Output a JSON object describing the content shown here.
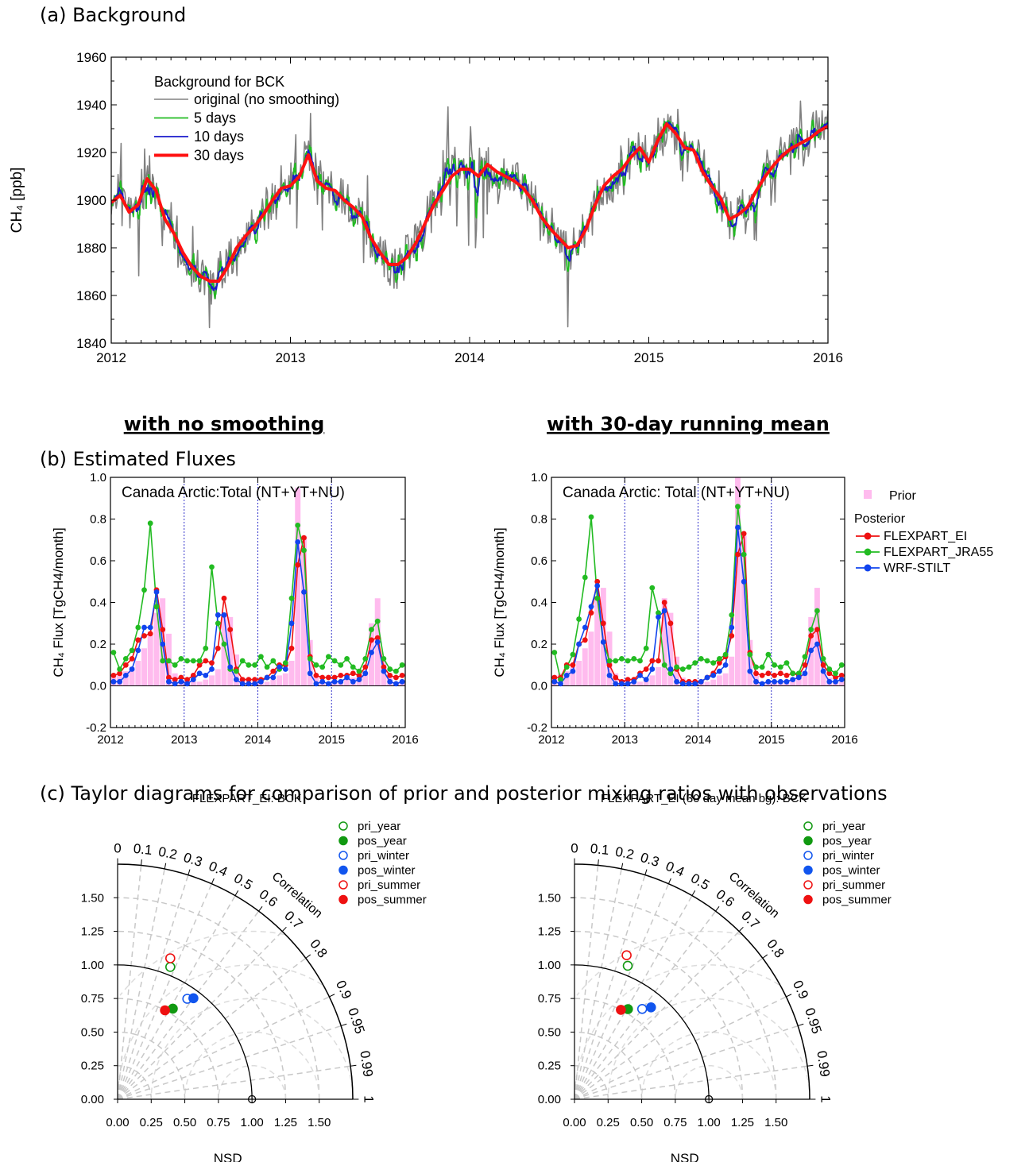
{
  "section_a": {
    "label": "(a) Background"
  },
  "section_b": {
    "label": "(b) Estimated Fluxes",
    "left_heading": "with no smoothing",
    "right_heading": "with 30-day running mean"
  },
  "section_c": {
    "label": "(c) Taylor diagrams for comparison of prior and posterior mixing ratios with observations"
  },
  "chart_data": [
    {
      "id": "background",
      "type": "line",
      "ylabel": "CH₄ [ppb]",
      "xlim": [
        2012,
        2016
      ],
      "ylim": [
        1840,
        1960
      ],
      "x_ticks": [
        "2012",
        "2013",
        "2014",
        "2015",
        "2016"
      ],
      "y_ticks": [
        1840,
        1860,
        1880,
        1900,
        1920,
        1940,
        1960
      ],
      "legend_title": "Background for BCK",
      "legend_position": "top-left",
      "colors": {
        "original": "#808080",
        "d5": "#22bb22",
        "d10": "#1a1acc",
        "d30": "#ff1111"
      },
      "series": [
        {
          "name": "original (no smoothing)",
          "key": "original"
        },
        {
          "name": "5 days",
          "key": "d5"
        },
        {
          "name": "10 days",
          "key": "d10"
        },
        {
          "name": "30 days",
          "key": "d30",
          "x": [
            2012.0,
            2012.05,
            2012.1,
            2012.15,
            2012.2,
            2012.25,
            2012.3,
            2012.35,
            2012.4,
            2012.45,
            2012.5,
            2012.55,
            2012.6,
            2012.65,
            2012.7,
            2012.75,
            2012.8,
            2012.85,
            2012.9,
            2012.95,
            2013.0,
            2013.05,
            2013.1,
            2013.15,
            2013.2,
            2013.25,
            2013.3,
            2013.35,
            2013.4,
            2013.45,
            2013.5,
            2013.55,
            2013.6,
            2013.65,
            2013.7,
            2013.75,
            2013.8,
            2013.85,
            2013.9,
            2013.95,
            2014.0,
            2014.05,
            2014.1,
            2014.15,
            2014.2,
            2014.25,
            2014.3,
            2014.35,
            2014.4,
            2014.45,
            2014.5,
            2014.55,
            2014.6,
            2014.65,
            2014.7,
            2014.75,
            2014.8,
            2014.85,
            2014.9,
            2014.95,
            2015.0,
            2015.05,
            2015.1,
            2015.15,
            2015.2,
            2015.25,
            2015.3,
            2015.35,
            2015.4,
            2015.45,
            2015.5,
            2015.55,
            2015.6,
            2015.65,
            2015.7,
            2015.75,
            2015.8,
            2015.85,
            2015.9,
            2015.95,
            2016.0
          ],
          "y": [
            1899,
            1902,
            1895,
            1898,
            1909,
            1904,
            1892,
            1886,
            1878,
            1872,
            1868,
            1866,
            1866,
            1872,
            1880,
            1885,
            1889,
            1894,
            1900,
            1905,
            1906,
            1910,
            1919,
            1908,
            1905,
            1904,
            1900,
            1897,
            1893,
            1884,
            1878,
            1873,
            1873,
            1876,
            1882,
            1890,
            1898,
            1904,
            1910,
            1913,
            1913,
            1910,
            1915,
            1912,
            1910,
            1908,
            1905,
            1900,
            1893,
            1888,
            1884,
            1880,
            1881,
            1888,
            1898,
            1906,
            1910,
            1913,
            1918,
            1922,
            1916,
            1925,
            1932,
            1928,
            1922,
            1921,
            1912,
            1906,
            1901,
            1892,
            1894,
            1897,
            1904,
            1910,
            1915,
            1919,
            1922,
            1924,
            1926,
            1929,
            1931
          ]
        }
      ]
    },
    {
      "id": "flux_no_smoothing",
      "type": "line",
      "panel": "left",
      "annotation": "Canada Arctic:Total  (NT+YT+NU)",
      "ylabel": "CH₄ Flux [TgCH4/month]",
      "xlim": [
        2012,
        2016
      ],
      "ylim": [
        -0.2,
        1.0
      ],
      "x_ticks": [
        "2012",
        "2013",
        "2014",
        "2015",
        "2016"
      ],
      "y_ticks": [
        "-0.2",
        "0.0",
        "0.2",
        "0.4",
        "0.6",
        "0.8",
        "1.0"
      ],
      "prior": [
        0.05,
        0.06,
        0.07,
        0.09,
        0.12,
        0.18,
        0.26,
        0.35,
        0.42,
        0.25,
        0.06,
        0.02,
        0.02,
        0.02,
        0.02,
        0.03,
        0.05,
        0.08,
        0.34,
        0.33,
        0.15,
        0.04,
        0.02,
        0.02,
        0.02,
        0.02,
        0.03,
        0.05,
        0.06,
        0.12,
        0.95,
        0.72,
        0.22,
        0.05,
        0.02,
        0.02,
        0.02,
        0.02,
        0.03,
        0.04,
        0.05,
        0.07,
        0.3,
        0.42,
        0.12,
        0.04,
        0.02,
        0.02
      ],
      "series": [
        {
          "name": "FLEXPART_EI",
          "color": "#ee1111",
          "values": [
            0.05,
            0.06,
            0.1,
            0.13,
            0.22,
            0.24,
            0.25,
            0.46,
            0.27,
            0.04,
            0.03,
            0.04,
            0.03,
            0.05,
            0.1,
            0.12,
            0.11,
            0.18,
            0.42,
            0.27,
            0.08,
            0.03,
            0.03,
            0.03,
            0.03,
            0.04,
            0.07,
            0.1,
            0.1,
            0.18,
            0.58,
            0.71,
            0.14,
            0.05,
            0.04,
            0.04,
            0.04,
            0.05,
            0.05,
            0.06,
            0.05,
            0.09,
            0.22,
            0.23,
            0.09,
            0.05,
            0.04,
            0.05
          ]
        },
        {
          "name": "FLEXPART_JRA55",
          "color": "#22bb22",
          "values": [
            0.16,
            0.08,
            0.13,
            0.17,
            0.28,
            0.46,
            0.78,
            0.38,
            0.12,
            0.12,
            0.1,
            0.13,
            0.12,
            0.12,
            0.12,
            0.18,
            0.57,
            0.3,
            0.2,
            0.08,
            0.07,
            0.12,
            0.1,
            0.1,
            0.14,
            0.09,
            0.12,
            0.08,
            0.11,
            0.42,
            0.77,
            0.65,
            0.13,
            0.1,
            0.09,
            0.14,
            0.12,
            0.1,
            0.13,
            0.09,
            0.07,
            0.13,
            0.27,
            0.31,
            0.13,
            0.08,
            0.07,
            0.1
          ]
        },
        {
          "name": "WRF-STILT",
          "color": "#1144ee",
          "values": [
            0.02,
            0.02,
            0.05,
            0.08,
            0.17,
            0.28,
            0.28,
            0.45,
            0.2,
            0.02,
            0.01,
            0.02,
            0.01,
            0.03,
            0.06,
            0.05,
            0.08,
            0.34,
            0.34,
            0.09,
            0.03,
            0.01,
            0.01,
            0.01,
            0.02,
            0.04,
            0.04,
            0.09,
            0.08,
            0.3,
            0.69,
            0.45,
            0.06,
            0.01,
            0.02,
            0.01,
            0.02,
            0.02,
            0.04,
            0.02,
            0.03,
            0.06,
            0.16,
            0.21,
            0.07,
            0.02,
            0.01,
            0.02
          ]
        }
      ]
    },
    {
      "id": "flux_30day",
      "type": "line",
      "panel": "right",
      "annotation": "Canada Arctic: Total  (NT+YT+NU)",
      "ylabel": "CH₄ Flux [TgCH4/month]",
      "xlim": [
        2012,
        2016
      ],
      "ylim": [
        -0.2,
        1.0
      ],
      "x_ticks": [
        "2012",
        "2013",
        "2014",
        "2015",
        "2016"
      ],
      "y_ticks": [
        "-0.2",
        "0.0",
        "0.2",
        "0.4",
        "0.6",
        "0.8",
        "1.0"
      ],
      "legend": {
        "prior_label": "Prior",
        "posterior_title": "Posterior",
        "position": "right"
      },
      "prior_color": "#ffbbee",
      "prior": [
        0.05,
        0.06,
        0.07,
        0.09,
        0.12,
        0.18,
        0.26,
        0.42,
        0.47,
        0.26,
        0.06,
        0.02,
        0.02,
        0.02,
        0.02,
        0.03,
        0.05,
        0.09,
        0.42,
        0.35,
        0.14,
        0.04,
        0.02,
        0.02,
        0.02,
        0.02,
        0.03,
        0.05,
        0.06,
        0.14,
        1.02,
        0.72,
        0.22,
        0.05,
        0.02,
        0.02,
        0.02,
        0.02,
        0.03,
        0.04,
        0.05,
        0.07,
        0.33,
        0.47,
        0.12,
        0.04,
        0.02,
        0.02
      ],
      "series": [
        {
          "name": "FLEXPART_EI",
          "color": "#ee1111",
          "values": [
            0.04,
            0.04,
            0.1,
            0.1,
            0.2,
            0.22,
            0.35,
            0.5,
            0.3,
            0.1,
            0.04,
            0.02,
            0.03,
            0.03,
            0.06,
            0.08,
            0.12,
            0.12,
            0.4,
            0.3,
            0.08,
            0.02,
            0.02,
            0.02,
            0.02,
            0.04,
            0.06,
            0.11,
            0.14,
            0.24,
            0.63,
            0.73,
            0.16,
            0.06,
            0.05,
            0.06,
            0.05,
            0.06,
            0.05,
            0.06,
            0.05,
            0.1,
            0.24,
            0.27,
            0.1,
            0.06,
            0.04,
            0.05
          ]
        },
        {
          "name": "FLEXPART_JRA55",
          "color": "#22bb22",
          "values": [
            0.16,
            0.03,
            0.09,
            0.15,
            0.32,
            0.52,
            0.81,
            0.42,
            0.21,
            0.12,
            0.12,
            0.13,
            0.12,
            0.13,
            0.12,
            0.18,
            0.47,
            0.35,
            0.1,
            0.06,
            0.09,
            0.08,
            0.09,
            0.11,
            0.13,
            0.12,
            0.11,
            0.13,
            0.15,
            0.34,
            0.86,
            0.63,
            0.15,
            0.09,
            0.09,
            0.15,
            0.1,
            0.09,
            0.11,
            0.06,
            0.06,
            0.14,
            0.27,
            0.36,
            0.13,
            0.08,
            0.06,
            0.1
          ]
        },
        {
          "name": "WRF-STILT",
          "color": "#1144ee",
          "values": [
            0.02,
            0.01,
            0.05,
            0.07,
            0.2,
            0.28,
            0.38,
            0.48,
            0.21,
            0.05,
            0.01,
            0.01,
            0.01,
            0.02,
            0.05,
            0.03,
            0.08,
            0.33,
            0.36,
            0.08,
            0.02,
            0.01,
            0.01,
            0.01,
            0.02,
            0.04,
            0.05,
            0.07,
            0.1,
            0.28,
            0.76,
            0.5,
            0.07,
            0.02,
            0.01,
            0.02,
            0.02,
            0.02,
            0.02,
            0.03,
            0.04,
            0.06,
            0.17,
            0.2,
            0.07,
            0.02,
            0.02,
            0.03
          ]
        }
      ]
    },
    {
      "id": "taylor_left",
      "type": "scatter",
      "title": "FLEXPART_EI: BCK",
      "xlabel": "NSD",
      "radial_label": "Correlation",
      "nsd_max": 1.75,
      "nsd_ticks": [
        "0.00",
        "0.25",
        "0.50",
        "0.75",
        "1.00",
        "1.25",
        "1.50"
      ],
      "corr_ticks": [
        "0",
        "0.1",
        "0.2",
        "0.3",
        "0.4",
        "0.5",
        "0.6",
        "0.7",
        "0.8",
        "0.9",
        "0.95",
        "0.99",
        "1"
      ],
      "legend_position": "top-right",
      "points": [
        {
          "name": "pri_year",
          "color": "#119911",
          "filled": false,
          "nsd": 1.06,
          "corr": 0.37
        },
        {
          "name": "pos_year",
          "color": "#119911",
          "filled": true,
          "nsd": 0.79,
          "corr": 0.52
        },
        {
          "name": "pri_winter",
          "color": "#1155ee",
          "filled": false,
          "nsd": 0.91,
          "corr": 0.57
        },
        {
          "name": "pos_winter",
          "color": "#1155ee",
          "filled": true,
          "nsd": 0.94,
          "corr": 0.6
        },
        {
          "name": "pri_summer",
          "color": "#ee1111",
          "filled": false,
          "nsd": 1.12,
          "corr": 0.35
        },
        {
          "name": "pos_summer",
          "color": "#ee1111",
          "filled": true,
          "nsd": 0.75,
          "corr": 0.47
        }
      ]
    },
    {
      "id": "taylor_right",
      "type": "scatter",
      "title": "FLEXPART_EI (30 day mean bg): BCK",
      "xlabel": "NSD",
      "radial_label": "Correlation",
      "nsd_max": 1.75,
      "nsd_ticks": [
        "0.00",
        "0.25",
        "0.50",
        "0.75",
        "1.00",
        "1.25",
        "1.50"
      ],
      "corr_ticks": [
        "0",
        "0.1",
        "0.2",
        "0.3",
        "0.4",
        "0.5",
        "0.6",
        "0.7",
        "0.8",
        "0.9",
        "0.95",
        "0.99",
        "1"
      ],
      "legend_position": "top-right",
      "points": [
        {
          "name": "pri_year",
          "color": "#119911",
          "filled": false,
          "nsd": 1.07,
          "corr": 0.37
        },
        {
          "name": "pos_year",
          "color": "#119911",
          "filled": true,
          "nsd": 0.78,
          "corr": 0.51
        },
        {
          "name": "pri_winter",
          "color": "#1155ee",
          "filled": false,
          "nsd": 0.84,
          "corr": 0.6
        },
        {
          "name": "pos_winter",
          "color": "#1155ee",
          "filled": true,
          "nsd": 0.89,
          "corr": 0.64
        },
        {
          "name": "pri_summer",
          "color": "#ee1111",
          "filled": false,
          "nsd": 1.14,
          "corr": 0.34
        },
        {
          "name": "pos_summer",
          "color": "#ee1111",
          "filled": true,
          "nsd": 0.75,
          "corr": 0.46
        }
      ]
    }
  ]
}
